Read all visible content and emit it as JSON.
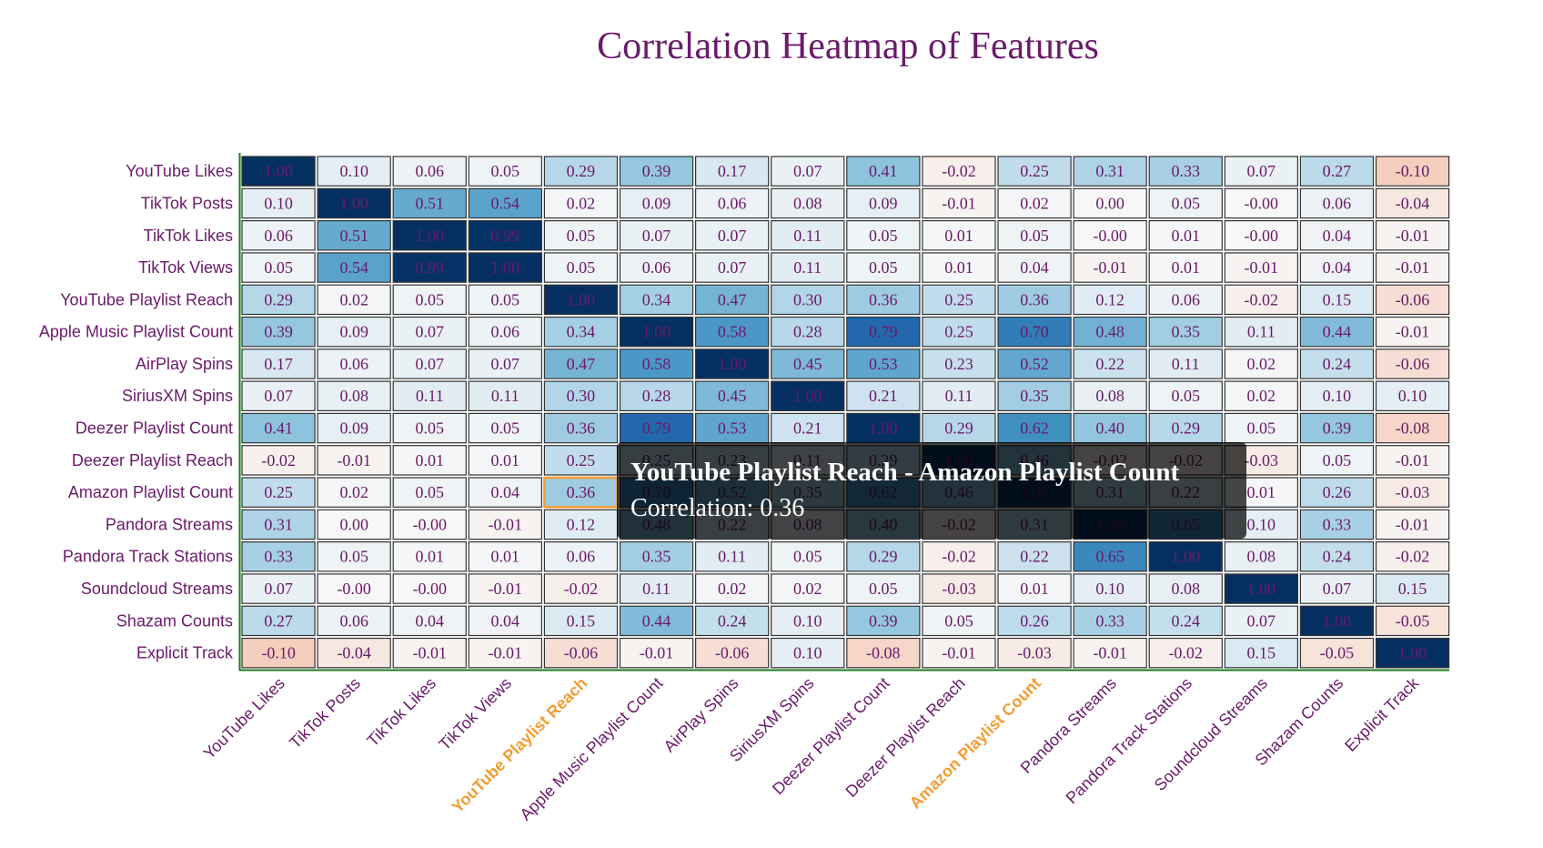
{
  "chart_data": {
    "type": "heatmap",
    "title": "Correlation Heatmap of Features",
    "features": [
      "YouTube Likes",
      "TikTok Posts",
      "TikTok Likes",
      "TikTok Views",
      "YouTube Playlist Reach",
      "Apple Music Playlist Count",
      "AirPlay Spins",
      "SiriusXM Spins",
      "Deezer Playlist Count",
      "Deezer Playlist Reach",
      "Amazon Playlist Count",
      "Pandora Streams",
      "Pandora Track Stations",
      "Soundcloud Streams",
      "Shazam Counts",
      "Explicit Track"
    ],
    "matrix": [
      [
        "1.00",
        "0.10",
        "0.06",
        "0.05",
        "0.29",
        "0.39",
        "0.17",
        "0.07",
        "0.41",
        "-0.02",
        "0.25",
        "0.31",
        "0.33",
        "0.07",
        "0.27",
        "-0.10"
      ],
      [
        "0.10",
        "1.00",
        "0.51",
        "0.54",
        "0.02",
        "0.09",
        "0.06",
        "0.08",
        "0.09",
        "-0.01",
        "0.02",
        "0.00",
        "0.05",
        "-0.00",
        "0.06",
        "-0.04"
      ],
      [
        "0.06",
        "0.51",
        "1.00",
        "0.99",
        "0.05",
        "0.07",
        "0.07",
        "0.11",
        "0.05",
        "0.01",
        "0.05",
        "-0.00",
        "0.01",
        "-0.00",
        "0.04",
        "-0.01"
      ],
      [
        "0.05",
        "0.54",
        "0.99",
        "1.00",
        "0.05",
        "0.06",
        "0.07",
        "0.11",
        "0.05",
        "0.01",
        "0.04",
        "-0.01",
        "0.01",
        "-0.01",
        "0.04",
        "-0.01"
      ],
      [
        "0.29",
        "0.02",
        "0.05",
        "0.05",
        "1.00",
        "0.34",
        "0.47",
        "0.30",
        "0.36",
        "0.25",
        "0.36",
        "0.12",
        "0.06",
        "-0.02",
        "0.15",
        "-0.06"
      ],
      [
        "0.39",
        "0.09",
        "0.07",
        "0.06",
        "0.34",
        "1.00",
        "0.58",
        "0.28",
        "0.79",
        "0.25",
        "0.70",
        "0.48",
        "0.35",
        "0.11",
        "0.44",
        "-0.01"
      ],
      [
        "0.17",
        "0.06",
        "0.07",
        "0.07",
        "0.47",
        "0.58",
        "1.00",
        "0.45",
        "0.53",
        "0.23",
        "0.52",
        "0.22",
        "0.11",
        "0.02",
        "0.24",
        "-0.06"
      ],
      [
        "0.07",
        "0.08",
        "0.11",
        "0.11",
        "0.30",
        "0.28",
        "0.45",
        "1.00",
        "0.21",
        "0.11",
        "0.35",
        "0.08",
        "0.05",
        "0.02",
        "0.10",
        "0.10"
      ],
      [
        "0.41",
        "0.09",
        "0.05",
        "0.05",
        "0.36",
        "0.79",
        "0.53",
        "0.21",
        "1.00",
        "0.29",
        "0.62",
        "0.40",
        "0.29",
        "0.05",
        "0.39",
        "-0.08"
      ],
      [
        "-0.02",
        "-0.01",
        "0.01",
        "0.01",
        "0.25",
        "0.25",
        "0.23",
        "0.11",
        "0.29",
        "1.00",
        "0.46",
        "-0.02",
        "-0.02",
        "-0.03",
        "0.05",
        "-0.01"
      ],
      [
        "0.25",
        "0.02",
        "0.05",
        "0.04",
        "0.36",
        "0.70",
        "0.52",
        "0.35",
        "0.62",
        "0.46",
        "1.00",
        "0.31",
        "0.22",
        "0.01",
        "0.26",
        "-0.03"
      ],
      [
        "0.31",
        "0.00",
        "-0.00",
        "-0.01",
        "0.12",
        "0.48",
        "0.22",
        "0.08",
        "0.40",
        "-0.02",
        "0.31",
        "1.00",
        "0.65",
        "0.10",
        "0.33",
        "-0.01"
      ],
      [
        "0.33",
        "0.05",
        "0.01",
        "0.01",
        "0.06",
        "0.35",
        "0.11",
        "0.05",
        "0.29",
        "-0.02",
        "0.22",
        "0.65",
        "1.00",
        "0.08",
        "0.24",
        "-0.02"
      ],
      [
        "0.07",
        "-0.00",
        "-0.00",
        "-0.01",
        "-0.02",
        "0.11",
        "0.02",
        "0.02",
        "0.05",
        "-0.03",
        "0.01",
        "0.10",
        "0.08",
        "1.00",
        "0.07",
        "0.15"
      ],
      [
        "0.27",
        "0.06",
        "0.04",
        "0.04",
        "0.15",
        "0.44",
        "0.24",
        "0.10",
        "0.39",
        "0.05",
        "0.26",
        "0.33",
        "0.24",
        "0.07",
        "1.00",
        "-0.05"
      ],
      [
        "-0.10",
        "-0.04",
        "-0.01",
        "-0.01",
        "-0.06",
        "-0.01",
        "-0.06",
        "0.10",
        "-0.08",
        "-0.01",
        "-0.03",
        "-0.01",
        "-0.02",
        "0.15",
        "-0.05",
        "1.00"
      ]
    ],
    "colorscale": "RdBu",
    "zrange": [
      -1,
      1
    ],
    "highlighted_cell": {
      "row": "Amazon Playlist Count",
      "col": "YouTube Playlist Reach",
      "value": "0.36"
    },
    "highlight_color": "#f39c34",
    "text_color": "#6a1a6a"
  },
  "tooltip": {
    "title": "YouTube Playlist Reach - Amazon Playlist Count",
    "line": "Correlation: 0.36"
  }
}
